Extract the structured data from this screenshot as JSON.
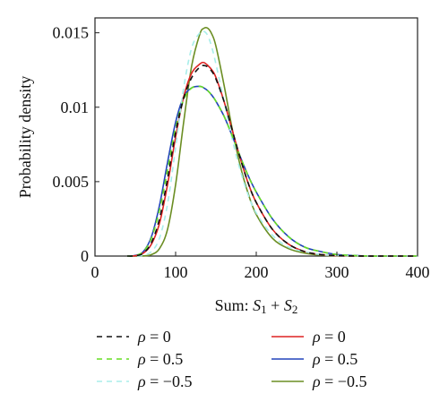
{
  "chart_data": {
    "type": "line",
    "title": "",
    "xlabel": {
      "prefix": "Sum: ",
      "s": "S",
      "sub1": "1",
      "plus": " + ",
      "sub2": "2"
    },
    "ylabel": "Probability density",
    "xlim": [
      0,
      400
    ],
    "ylim": [
      0,
      0.016
    ],
    "x_ticks": [
      "0",
      "100",
      "200",
      "300",
      "400"
    ],
    "x_tick_values": [
      0,
      100,
      200,
      300,
      400
    ],
    "y_ticks": [
      "0",
      "0.005",
      "0.01",
      "0.015"
    ],
    "y_tick_values": [
      0,
      0.005,
      0.01,
      0.015
    ],
    "grid": false,
    "legend_position": "below",
    "x": [
      40,
      50,
      60,
      70,
      80,
      90,
      100,
      110,
      120,
      130,
      135,
      140,
      145,
      150,
      160,
      170,
      180,
      190,
      200,
      220,
      240,
      260,
      280,
      300,
      320,
      340,
      360,
      380,
      400
    ],
    "series": [
      {
        "label": {
          "symbol": "ρ",
          "rest": " = 0"
        },
        "color": "#111111",
        "dash": "6,5",
        "values": [
          0,
          2e-05,
          0.0002,
          0.0009,
          0.0025,
          0.0052,
          0.0083,
          0.0106,
          0.012,
          0.0127,
          0.0128,
          0.0127,
          0.0124,
          0.0119,
          0.0104,
          0.0085,
          0.0066,
          0.0049,
          0.0036,
          0.0018,
          0.0008,
          0.0003,
          0.0001,
          3e-05,
          1e-05,
          0,
          0,
          0,
          0
        ]
      },
      {
        "label": {
          "symbol": "ρ",
          "rest": " = 0.5"
        },
        "color": "#66dd22",
        "dash": "6,5",
        "values": [
          0,
          3e-05,
          0.0003,
          0.0012,
          0.0031,
          0.0058,
          0.0086,
          0.0105,
          0.0113,
          0.0114,
          0.0113,
          0.0111,
          0.0108,
          0.0104,
          0.0094,
          0.0081,
          0.0067,
          0.0054,
          0.0043,
          0.0025,
          0.0013,
          0.0006,
          0.0003,
          0.0001,
          4e-05,
          0,
          0,
          0,
          0
        ]
      },
      {
        "label": {
          "symbol": "ρ",
          "rest": " = −0.5"
        },
        "color": "#a8eeea",
        "dash": "6,5",
        "values": [
          0,
          0,
          5e-05,
          0.0003,
          0.0012,
          0.0035,
          0.0073,
          0.0113,
          0.014,
          0.015,
          0.0151,
          0.0148,
          0.014,
          0.0129,
          0.0104,
          0.0079,
          0.0058,
          0.0041,
          0.0029,
          0.0014,
          0.0006,
          0.0003,
          0.0001,
          4e-05,
          1e-05,
          0,
          0,
          0,
          0
        ]
      },
      {
        "label": {
          "symbol": "ρ",
          "rest": " = 0"
        },
        "color": "#dd2222",
        "dash": "",
        "values": [
          0,
          2e-05,
          0.0002,
          0.0008,
          0.0022,
          0.0048,
          0.008,
          0.0107,
          0.0123,
          0.0129,
          0.013,
          0.0128,
          0.0125,
          0.012,
          0.0104,
          0.0085,
          0.0066,
          0.0049,
          0.0036,
          0.0018,
          0.0008,
          0.0003,
          0.0001,
          3e-05,
          1e-05,
          0,
          0,
          0,
          0
        ]
      },
      {
        "label": {
          "symbol": "ρ",
          "rest": " = 0.5"
        },
        "color": "#2244bb",
        "dash": "",
        "values": [
          0,
          4e-05,
          0.0003,
          0.0013,
          0.0034,
          0.0063,
          0.009,
          0.0107,
          0.0113,
          0.0114,
          0.0113,
          0.0111,
          0.0108,
          0.0104,
          0.0094,
          0.0081,
          0.0067,
          0.0054,
          0.0043,
          0.0025,
          0.0013,
          0.0006,
          0.0003,
          0.0001,
          4e-05,
          0,
          0,
          0,
          0
        ]
      },
      {
        "label": {
          "symbol": "ρ",
          "rest": " = −0.5"
        },
        "color": "#6b8e23",
        "dash": "",
        "values": [
          0,
          0,
          1e-05,
          0.0001,
          0.0005,
          0.0018,
          0.0048,
          0.009,
          0.0128,
          0.0149,
          0.0153,
          0.0153,
          0.0149,
          0.0141,
          0.0115,
          0.0086,
          0.0061,
          0.0042,
          0.0028,
          0.0012,
          0.0005,
          0.0002,
          6e-05,
          2e-05,
          0,
          0,
          0,
          0,
          0
        ]
      }
    ]
  }
}
